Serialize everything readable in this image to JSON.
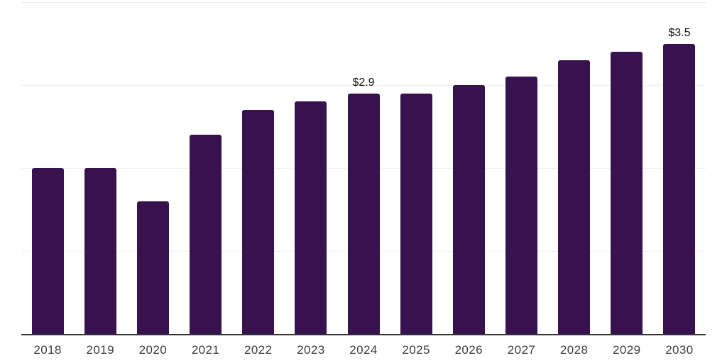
{
  "chart_data": {
    "type": "bar",
    "title": "",
    "xlabel": "",
    "ylabel": "",
    "categories": [
      "2018",
      "2019",
      "2020",
      "2021",
      "2022",
      "2023",
      "2024",
      "2025",
      "2026",
      "2027",
      "2028",
      "2029",
      "2030"
    ],
    "values": [
      2.0,
      2.0,
      1.6,
      2.4,
      2.7,
      2.8,
      2.9,
      2.9,
      3.0,
      3.1,
      3.3,
      3.4,
      3.5
    ],
    "annotations": [
      {
        "category": "2024",
        "text": "$2.9"
      },
      {
        "category": "2030",
        "text": "$3.5"
      }
    ],
    "ylim": [
      0,
      4
    ],
    "gridline_values": [
      1,
      2,
      3,
      4
    ],
    "grid": true,
    "legend": false,
    "y_axis_labels_visible": false,
    "colors": {
      "bar": "#38124E",
      "axis_line": "#333333",
      "gridline": "#efefef",
      "tick_label": "#3d3d3d",
      "data_label": "#0f0f0f"
    }
  }
}
